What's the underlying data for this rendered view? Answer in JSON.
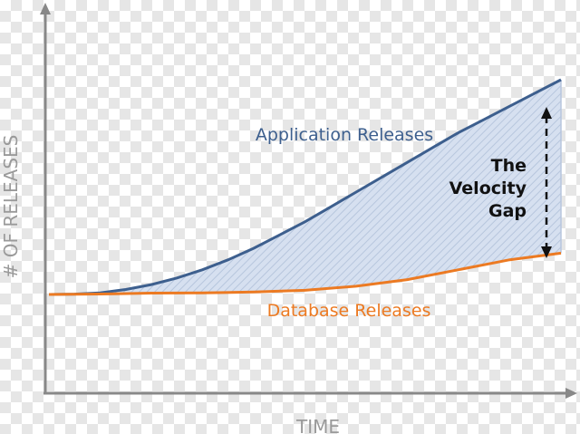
{
  "chart_data": {
    "type": "area",
    "title": "",
    "xlabel": "TIME",
    "ylabel": "# OF RELEASES",
    "grid": false,
    "legend": "none",
    "series": [
      {
        "name": "Application Releases",
        "color": "#3d5f8e",
        "x": [
          0,
          5,
          10,
          15,
          20,
          25,
          30,
          35,
          40,
          45,
          50,
          55,
          60,
          65,
          70,
          75,
          80,
          85,
          90,
          95,
          100
        ],
        "values": [
          0,
          0.2,
          1,
          3,
          6,
          10,
          15,
          21,
          28,
          36,
          44,
          53,
          62,
          71,
          80,
          89,
          98,
          106,
          114,
          122,
          130
        ]
      },
      {
        "name": "Database Releases",
        "color": "#ec7a22",
        "x": [
          0,
          10,
          20,
          30,
          40,
          50,
          60,
          70,
          80,
          90,
          100
        ],
        "values": [
          0,
          0.3,
          0.8,
          1,
          1.5,
          2.5,
          5,
          9,
          15,
          21,
          25
        ]
      }
    ],
    "annotations": {
      "gap_label_lines": [
        "The",
        "Velocity",
        "Gap"
      ]
    },
    "xlim": [
      0,
      100
    ],
    "ylim": [
      -60,
      140
    ]
  },
  "colors": {
    "axis": "#888888",
    "axis_text": "#9a9a9a",
    "gap_fill": "#d6e0f0",
    "gap_hatch": "#b7c6dd",
    "gap_arrow": "#111111",
    "gap_text": "#111111"
  }
}
